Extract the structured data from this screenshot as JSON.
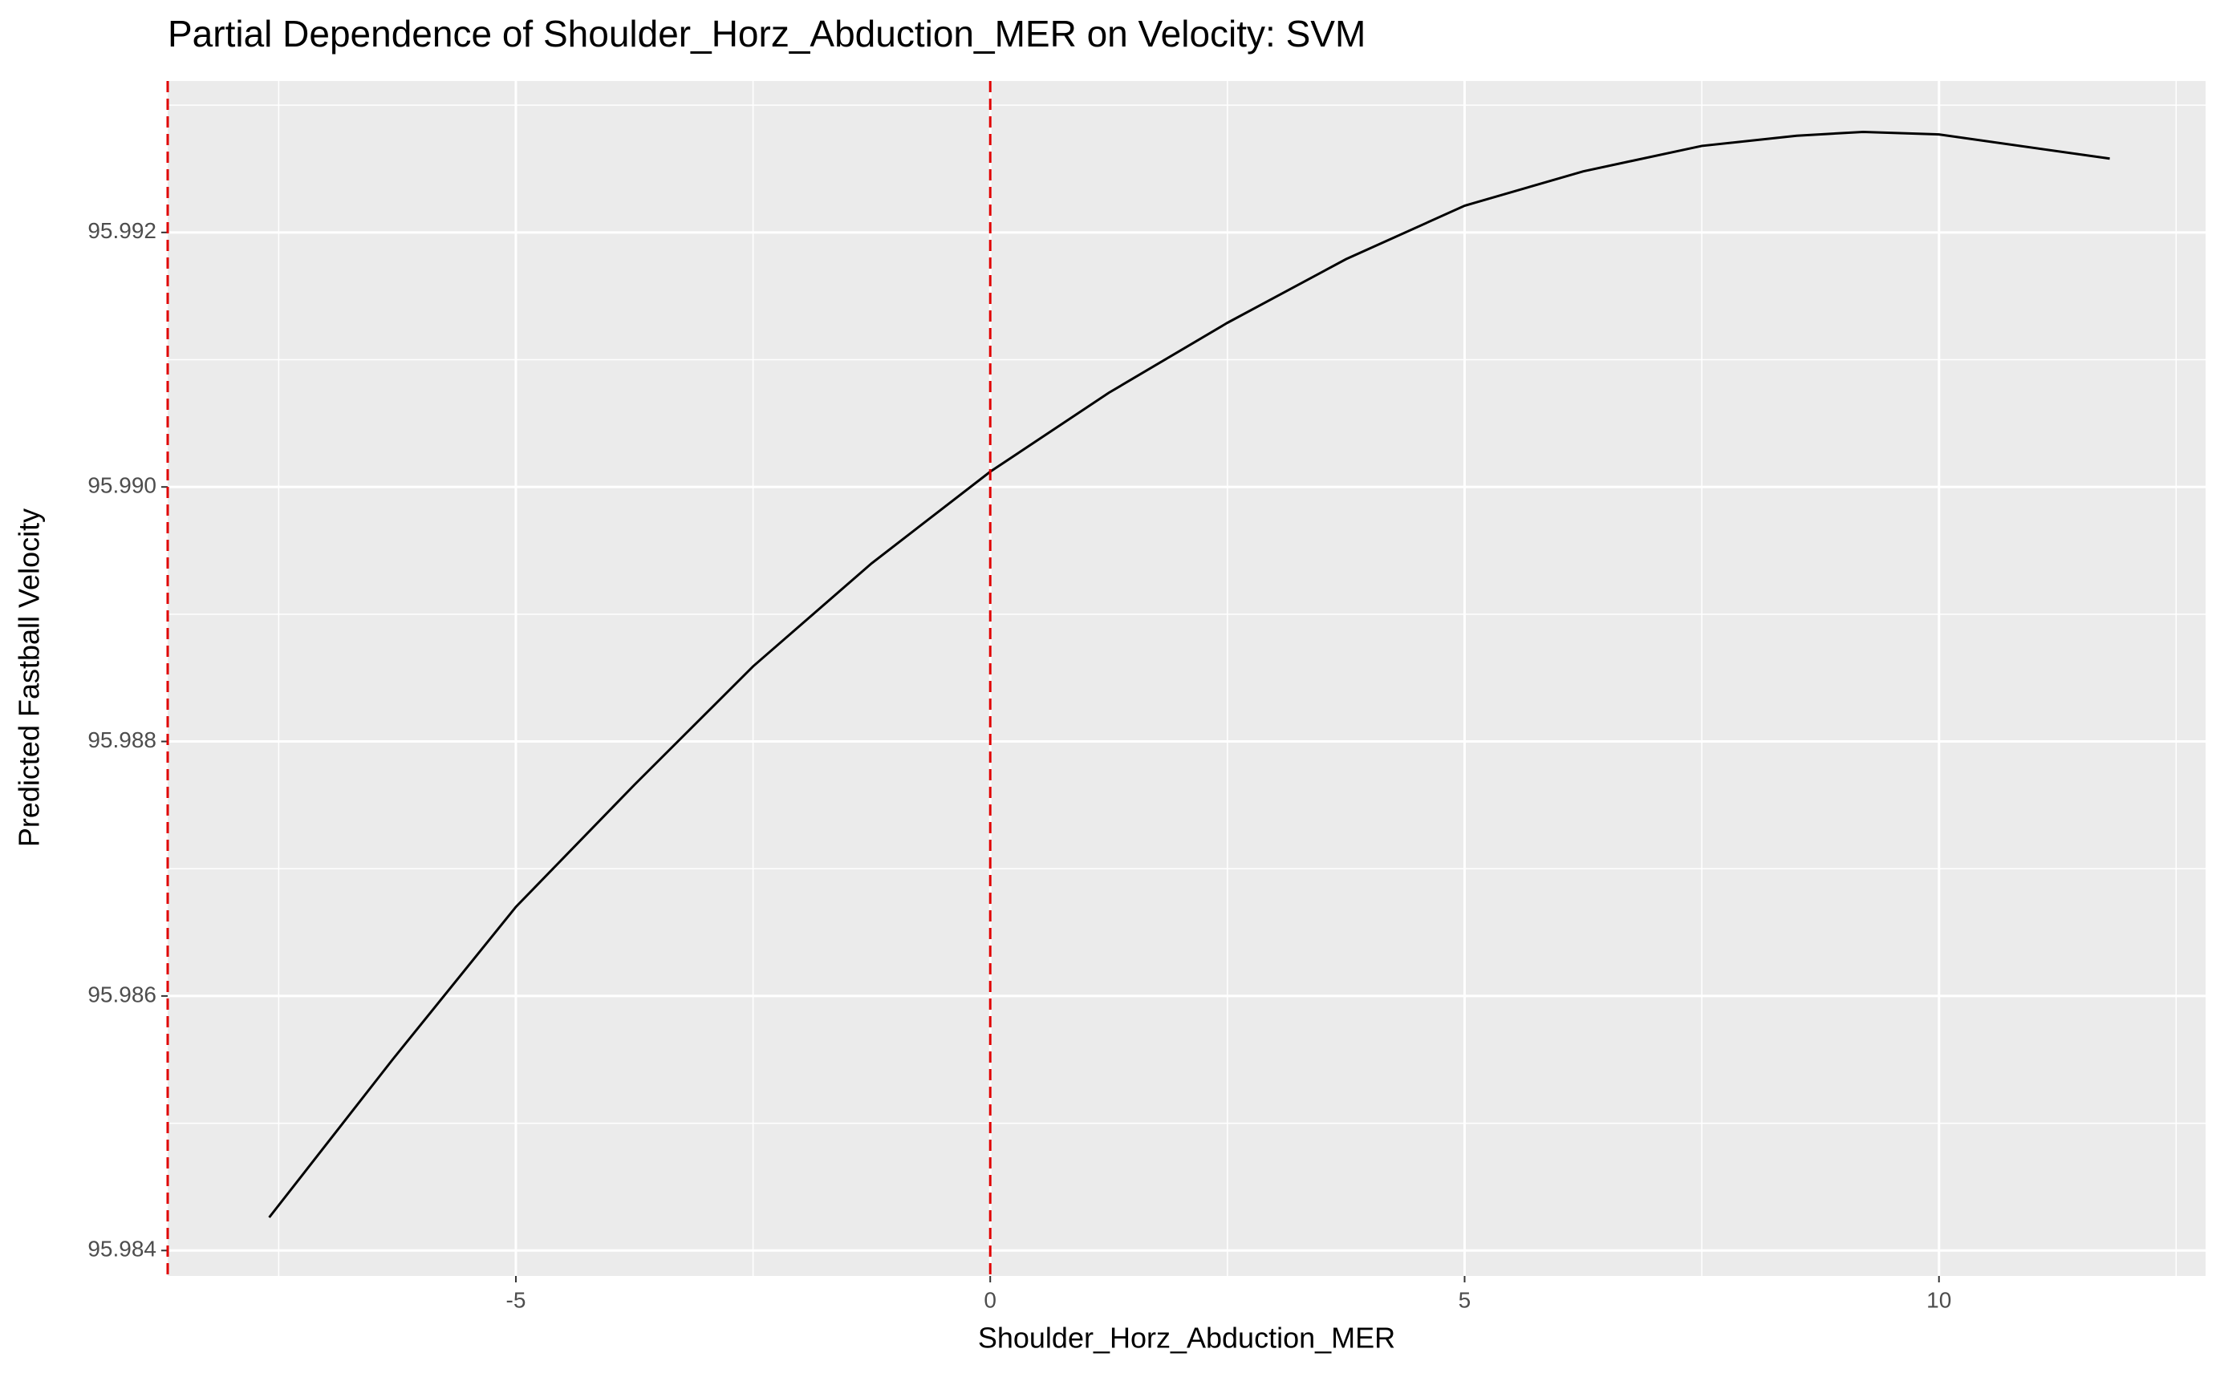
{
  "chart_data": {
    "type": "line",
    "title": "Partial Dependence of Shoulder_Horz_Abduction_MER on Velocity: SVM",
    "x_label": "Shoulder_Horz_Abduction_MER",
    "y_label": "Predicted Fastball Velocity",
    "x": [
      -7.6,
      -6.3,
      -5,
      -3.75,
      -2.5,
      -1.25,
      0,
      1.25,
      2.5,
      3.75,
      5,
      6.25,
      7.5,
      8.5,
      9.2,
      10,
      11.8
    ],
    "series": [
      {
        "color": "#000000",
        "values": [
          95.98426,
          95.9855,
          95.9867,
          95.98766,
          95.98859,
          95.9894,
          95.99012,
          95.99074,
          95.99129,
          95.99179,
          95.99221,
          95.99248,
          95.99268,
          95.99276,
          95.99279,
          95.99277,
          95.99258
        ]
      }
    ],
    "xlim": [
      -8.67,
      12.81
    ],
    "ylim": [
      95.9838,
      95.99319
    ],
    "xticks": [
      -5,
      0,
      5,
      10
    ],
    "yticks": [
      {
        "value": 95.984,
        "label": "95.984"
      },
      {
        "value": 95.986,
        "label": "95.986"
      },
      {
        "value": 95.988,
        "label": "95.988"
      },
      {
        "value": 95.99,
        "label": "95.990"
      },
      {
        "value": 95.992,
        "label": "95.992"
      }
    ],
    "x_minor_ticks": [
      -7.5,
      -2.5,
      2.5,
      7.5,
      12.5
    ],
    "y_minor_ticks": [
      95.985,
      95.987,
      95.989,
      95.991,
      95.993
    ],
    "vlines": [
      -8.67,
      0
    ],
    "vline_color": "#e00000",
    "grid": true
  }
}
